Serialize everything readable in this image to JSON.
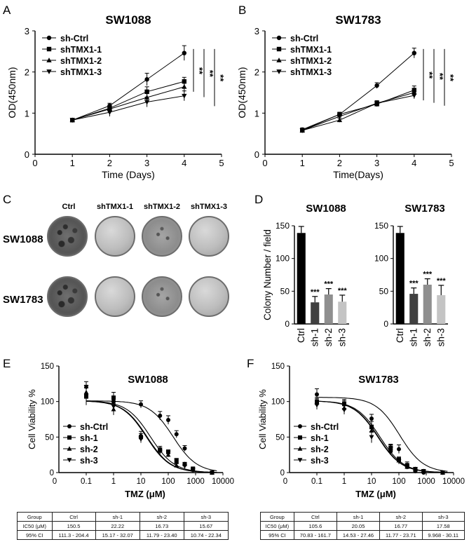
{
  "panels": {
    "A": {
      "letter": "A"
    },
    "B": {
      "letter": "B"
    },
    "C": {
      "letter": "C"
    },
    "D": {
      "letter": "D"
    },
    "E": {
      "letter": "E"
    },
    "F": {
      "letter": "F"
    }
  },
  "colony_plate": {
    "columns": [
      "Ctrl",
      "shTMX1-1",
      "shTMX1-2",
      "shTMX1-3"
    ],
    "rows": [
      "SW1088",
      "SW1783"
    ]
  },
  "chart_data": [
    {
      "id": "A",
      "type": "line",
      "title": "SW1088",
      "xlabel": "Time (Days)",
      "ylabel": "OD(450nm)",
      "xlim": [
        0,
        5
      ],
      "ylim": [
        0,
        3
      ],
      "xticks": [
        0,
        1,
        2,
        3,
        4,
        5
      ],
      "yticks": [
        0,
        1,
        2,
        3
      ],
      "x": [
        1,
        2,
        3,
        4
      ],
      "series": [
        {
          "name": "sh-Ctrl",
          "marker": "circle",
          "values": [
            0.83,
            1.18,
            1.82,
            2.46
          ],
          "err": [
            0.03,
            0.06,
            0.15,
            0.18
          ]
        },
        {
          "name": "shTMX1-1",
          "marker": "square",
          "values": [
            0.83,
            1.12,
            1.52,
            1.77
          ],
          "err": [
            0.03,
            0.06,
            0.12,
            0.1
          ]
        },
        {
          "name": "shTMX1-2",
          "marker": "triangle-up",
          "values": [
            0.83,
            1.1,
            1.38,
            1.64
          ],
          "err": [
            0.03,
            0.05,
            0.1,
            0.12
          ]
        },
        {
          "name": "shTMX1-3",
          "marker": "triangle-down",
          "values": [
            0.83,
            1.02,
            1.27,
            1.42
          ],
          "err": [
            0.03,
            0.1,
            0.12,
            0.12
          ]
        }
      ],
      "significance": [
        "**",
        "**",
        "**"
      ]
    },
    {
      "id": "B",
      "type": "line",
      "title": "SW1783",
      "xlabel": "Time(Days)",
      "ylabel": "OD(450nm)",
      "xlim": [
        0,
        5
      ],
      "ylim": [
        0,
        3
      ],
      "xticks": [
        0,
        1,
        2,
        3,
        4,
        5
      ],
      "yticks": [
        0,
        1,
        2,
        3
      ],
      "x": [
        1,
        2,
        3,
        4
      ],
      "series": [
        {
          "name": "sh-Ctrl",
          "marker": "circle",
          "values": [
            0.6,
            0.97,
            1.67,
            2.46
          ],
          "err": [
            0.04,
            0.05,
            0.07,
            0.12
          ]
        },
        {
          "name": "shTMX1-1",
          "marker": "square",
          "values": [
            0.58,
            0.97,
            1.22,
            1.56
          ],
          "err": [
            0.04,
            0.05,
            0.06,
            0.1
          ]
        },
        {
          "name": "shTMX1-2",
          "marker": "triangle-up",
          "values": [
            0.58,
            0.83,
            1.24,
            1.5
          ],
          "err": [
            0.04,
            0.05,
            0.06,
            0.1
          ]
        },
        {
          "name": "shTMX1-3",
          "marker": "triangle-down",
          "values": [
            0.58,
            0.92,
            1.24,
            1.43
          ],
          "err": [
            0.04,
            0.05,
            0.06,
            0.08
          ]
        }
      ],
      "significance": [
        "**",
        "**",
        "**"
      ]
    },
    {
      "id": "D1",
      "type": "bar",
      "title": "SW1088",
      "ylabel": "Colony Number / field",
      "ylim": [
        0,
        150
      ],
      "yticks": [
        0,
        50,
        100,
        150
      ],
      "categories": [
        "Ctrl",
        "sh-1",
        "sh-2",
        "sh-3"
      ],
      "values": [
        139,
        33,
        45,
        34
      ],
      "err": [
        10,
        9,
        9,
        10
      ],
      "colors": [
        "#000000",
        "#404040",
        "#8f8f8f",
        "#c4c4c4"
      ],
      "labels": [
        "",
        "***",
        "***",
        "***"
      ]
    },
    {
      "id": "D2",
      "type": "bar",
      "title": "SW1783",
      "ylabel": "",
      "ylim": [
        0,
        150
      ],
      "yticks": [
        0,
        50,
        100,
        150
      ],
      "categories": [
        "Ctrl",
        "sh-1",
        "sh-2",
        "sh-3"
      ],
      "values": [
        139,
        46,
        60,
        44
      ],
      "err": [
        10,
        9,
        9,
        15
      ],
      "colors": [
        "#000000",
        "#404040",
        "#8f8f8f",
        "#c4c4c4"
      ],
      "labels": [
        "",
        "***",
        "***",
        "***"
      ]
    },
    {
      "id": "E",
      "type": "scatter",
      "title": "SW1088",
      "xlabel": "TMZ (μM)",
      "ylabel": "Cell Viability %",
      "xscale": "log",
      "xlim": [
        0.01,
        10000
      ],
      "ylim": [
        0,
        150
      ],
      "xticks": [
        0.1,
        1,
        10,
        100,
        1000,
        10000
      ],
      "xtick_labels": [
        "0.1",
        "1",
        "10",
        "100",
        "1000",
        "10000"
      ],
      "ytick_labels": [
        "0",
        "50",
        "100",
        "150"
      ],
      "yticks": [
        0,
        50,
        100,
        150
      ],
      "x": [
        0.1,
        1,
        10,
        50,
        100,
        200,
        400,
        800,
        4000
      ],
      "series": [
        {
          "name": "sh-Ctrl",
          "marker": "circle",
          "top": 101,
          "ic50": 150.5,
          "hill": 1.0,
          "values": [
            110,
            100,
            96,
            80,
            74,
            54,
            34,
            5,
            0
          ],
          "err": [
            10,
            8,
            5,
            6,
            6,
            5,
            4,
            3,
            1
          ]
        },
        {
          "name": "sh-1",
          "marker": "square",
          "top": 101,
          "ic50": 22.22,
          "hill": 1.0,
          "values": [
            107,
            105,
            50,
            31,
            29,
            15,
            12,
            5,
            0
          ],
          "err": [
            12,
            8,
            5,
            4,
            3,
            3,
            2,
            2,
            1
          ]
        },
        {
          "name": "sh-2",
          "marker": "triangle-up",
          "top": 101,
          "ic50": 16.73,
          "hill": 1.0,
          "values": [
            113,
            89,
            53,
            33,
            25,
            10,
            12,
            4,
            0
          ],
          "err": [
            10,
            8,
            5,
            4,
            3,
            3,
            2,
            2,
            1
          ]
        },
        {
          "name": "sh-3",
          "marker": "triangle-down",
          "top": 101,
          "ic50": 15.67,
          "hill": 1.0,
          "values": [
            120,
            93,
            47,
            30,
            28,
            17,
            9,
            3,
            0
          ],
          "err": [
            8,
            6,
            5,
            4,
            3,
            3,
            2,
            2,
            1
          ]
        }
      ]
    },
    {
      "id": "F",
      "type": "scatter",
      "title": "SW1783",
      "xlabel": "TMZ (μM)",
      "ylabel": "Cell Viability %",
      "xscale": "log",
      "xlim": [
        0.01,
        10000
      ],
      "ylim": [
        0,
        150
      ],
      "xticks": [
        0.1,
        1,
        10,
        100,
        1000,
        10000
      ],
      "xtick_labels": [
        "0.1",
        "1",
        "10",
        "100",
        "1000",
        "10000"
      ],
      "ytick_labels": [
        "0",
        "50",
        "100",
        "150"
      ],
      "yticks": [
        0,
        50,
        100,
        150
      ],
      "x": [
        0.1,
        1,
        10,
        50,
        100,
        200,
        400,
        800,
        4000
      ],
      "series": [
        {
          "name": "sh-Ctrl",
          "marker": "circle",
          "top": 106,
          "ic50": 105.6,
          "hill": 1.0,
          "values": [
            110,
            96,
            76,
            30,
            33,
            10,
            2,
            0,
            0
          ],
          "err": [
            8,
            5,
            6,
            5,
            6,
            5,
            3,
            2,
            1
          ]
        },
        {
          "name": "sh-1",
          "marker": "square",
          "top": 101,
          "ic50": 20.05,
          "hill": 1.0,
          "values": [
            100,
            97,
            64,
            35,
            18,
            10,
            5,
            2,
            0
          ],
          "err": [
            6,
            6,
            8,
            5,
            4,
            3,
            2,
            2,
            1
          ]
        },
        {
          "name": "sh-2",
          "marker": "triangle-up",
          "top": 101,
          "ic50": 16.77,
          "hill": 1.0,
          "values": [
            98,
            91,
            59,
            34,
            17,
            8,
            5,
            2,
            0
          ],
          "err": [
            6,
            6,
            8,
            5,
            4,
            3,
            2,
            2,
            1
          ]
        },
        {
          "name": "sh-3",
          "marker": "triangle-down",
          "top": 101,
          "ic50": 17.58,
          "hill": 1.0,
          "values": [
            95,
            88,
            50,
            34,
            16,
            8,
            5,
            2,
            0
          ],
          "err": [
            6,
            6,
            8,
            5,
            4,
            3,
            2,
            2,
            1
          ]
        }
      ]
    }
  ],
  "tables": {
    "E": {
      "header": [
        "Group",
        "Ctrl",
        "sh-1",
        "sh-2",
        "sh-3"
      ],
      "rows": [
        [
          "IC50 (μM)",
          "150.5",
          "22.22",
          "16.73",
          "15.67"
        ],
        [
          "95% CI",
          "111.3 - 204.4",
          "15.17 - 32.07",
          "11.79 - 23.40",
          "10.74 - 22.34"
        ]
      ]
    },
    "F": {
      "header": [
        "Group",
        "Ctrl",
        "sh-1",
        "sh-2",
        "sh-3"
      ],
      "rows": [
        [
          "IC50 (μM)",
          "105.6",
          "20.05",
          "16.77",
          "17.58"
        ],
        [
          "95% CI",
          "70.83 - 161.7",
          "14.53 - 27.46",
          "11.77 - 23.71",
          "9.968 - 30.11"
        ]
      ]
    }
  }
}
